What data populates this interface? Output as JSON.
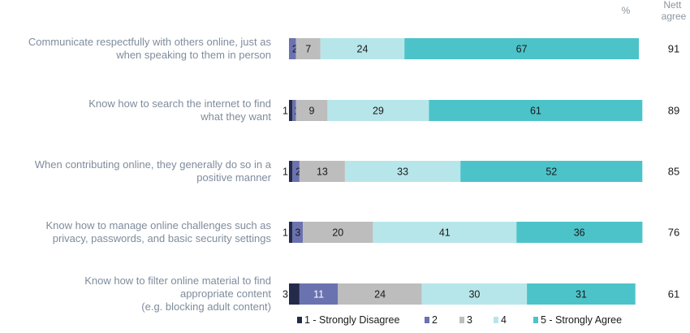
{
  "chart_data": {
    "type": "bar",
    "orientation": "horizontal",
    "stacked": true,
    "unit_header": "%",
    "nett_header": [
      "Nett",
      "agree"
    ],
    "categories": [
      [
        "Communicate respectfully with others online, just as",
        "when speaking to them in person"
      ],
      [
        "Know how to search the internet to find",
        "what they want"
      ],
      [
        "When contributing online, they generally do so in a",
        "positive manner"
      ],
      [
        "Know how to manage online challenges such as",
        "privacy, passwords, and basic security settings"
      ],
      [
        "Know how to filter online material to find",
        "appropriate content",
        "(e.g. blocking adult content)"
      ]
    ],
    "series": [
      {
        "name": "1 - Strongly Disagree",
        "color": "#232a4a",
        "values": [
          0,
          1,
          1,
          1,
          3
        ]
      },
      {
        "name": "2",
        "color": "#6b72b0",
        "values": [
          2,
          1,
          2,
          3,
          11
        ]
      },
      {
        "name": "3",
        "color": "#bdbdbd",
        "values": [
          7,
          9,
          13,
          20,
          24
        ]
      },
      {
        "name": "4",
        "color": "#b7e6ea",
        "values": [
          24,
          29,
          33,
          41,
          30
        ]
      },
      {
        "name": "5 - Strongly Agree",
        "color": "#4cc3c9",
        "values": [
          67,
          61,
          52,
          36,
          31
        ]
      }
    ],
    "nett_agree": [
      91,
      89,
      85,
      76,
      61
    ],
    "grid": false,
    "legend_position": "bottom"
  }
}
